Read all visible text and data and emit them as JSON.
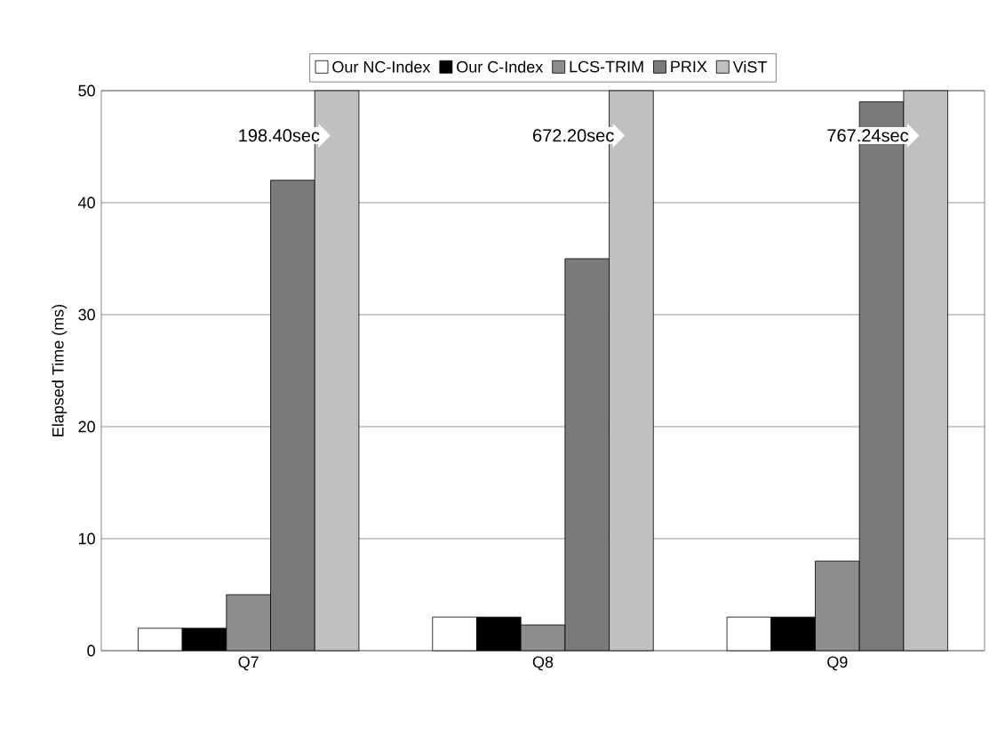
{
  "chart_data": {
    "type": "bar",
    "ylabel": "Elapsed Time (ms)",
    "categories": [
      "Q7",
      "Q8",
      "Q9"
    ],
    "series": [
      {
        "name": "Our NC-Index",
        "color": "#ffffff",
        "values": [
          2,
          3,
          3
        ]
      },
      {
        "name": "Our C-Index",
        "color": "#000000",
        "values": [
          2,
          3,
          3
        ]
      },
      {
        "name": "LCS-TRIM",
        "color": "#8c8c8c",
        "values": [
          5,
          2.3,
          8
        ]
      },
      {
        "name": "PRIX",
        "color": "#7a7a7a",
        "values": [
          42,
          35,
          49
        ]
      },
      {
        "name": "ViST",
        "color": "#c0c0c0",
        "values": [
          50,
          50,
          50
        ]
      }
    ],
    "annotations": [
      "198.40sec",
      "672.20sec",
      "767.24sec"
    ],
    "ylim": [
      0,
      50
    ],
    "yticks": [
      0,
      10,
      20,
      30,
      40,
      50
    ],
    "grid": "y",
    "legend": "top"
  }
}
